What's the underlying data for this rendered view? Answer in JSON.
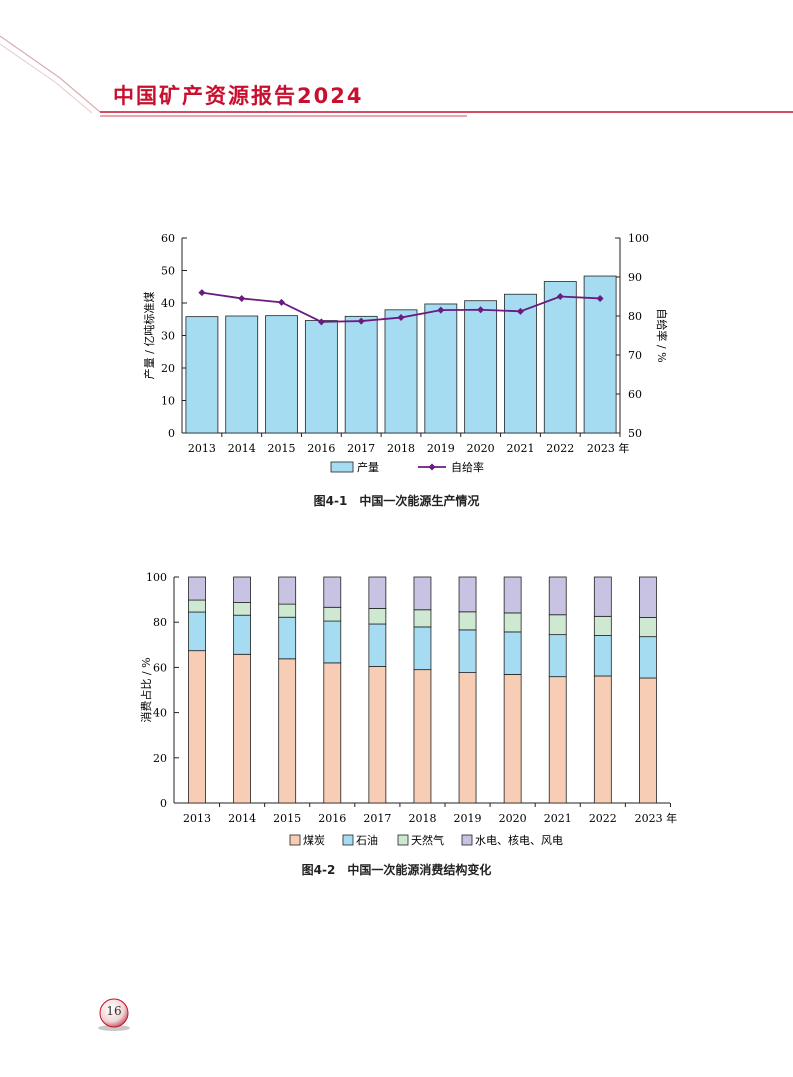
{
  "header": {
    "title": "中国矿产资源报告2024"
  },
  "page_number": "16",
  "colors": {
    "accent": "#c8102e",
    "bar_fill": "#a6dcf2",
    "line": "#6a1b7f",
    "coal": "#f8cdb5",
    "oil": "#a6dcf2",
    "gas": "#cfe8d2",
    "renewable": "#c9c3e3"
  },
  "chart_data": [
    {
      "type": "bar+line",
      "caption": "图4-1　中国一次能源生产情况",
      "categories": [
        "2013",
        "2014",
        "2015",
        "2016",
        "2017",
        "2018",
        "2019",
        "2020",
        "2021",
        "2022",
        "2023"
      ],
      "x_unit": "年",
      "ylabel_left": "产量 / 亿吨标准煤",
      "ylabel_right": "自给率 / %",
      "ylim_left": [
        0,
        60
      ],
      "ylim_right": [
        50,
        100
      ],
      "yticks_left": [
        "0",
        "10",
        "20",
        "30",
        "40",
        "50",
        "60"
      ],
      "yticks_right": [
        "50",
        "60",
        "70",
        "80",
        "90",
        "100"
      ],
      "series": [
        {
          "name": "产量",
          "kind": "bar",
          "axis": "left",
          "values": [
            35.8,
            36.0,
            36.1,
            34.6,
            35.9,
            37.9,
            39.7,
            40.7,
            42.7,
            46.6,
            48.3
          ]
        },
        {
          "name": "自给率",
          "kind": "line",
          "axis": "right",
          "values": [
            86.0,
            84.5,
            83.5,
            78.5,
            78.7,
            79.6,
            81.5,
            81.6,
            81.2,
            85.0,
            84.5
          ]
        }
      ],
      "legend_position": "bottom"
    },
    {
      "type": "stacked-bar",
      "caption": "图4-2　中国一次能源消费结构变化",
      "categories": [
        "2013",
        "2014",
        "2015",
        "2016",
        "2017",
        "2018",
        "2019",
        "2020",
        "2021",
        "2022",
        "2023"
      ],
      "x_unit": "年",
      "ylabel": "消费占比 / %",
      "ylim": [
        0,
        100
      ],
      "yticks": [
        "0",
        "20",
        "40",
        "60",
        "80",
        "100"
      ],
      "series": [
        {
          "name": "煤炭",
          "values": [
            67.4,
            65.8,
            63.8,
            62.0,
            60.4,
            59.0,
            57.7,
            56.9,
            55.9,
            56.2,
            55.3
          ]
        },
        {
          "name": "石油",
          "values": [
            17.1,
            17.3,
            18.4,
            18.5,
            18.8,
            18.9,
            18.9,
            18.8,
            18.6,
            17.9,
            18.3
          ]
        },
        {
          "name": "天然气",
          "values": [
            5.3,
            5.6,
            5.8,
            6.1,
            6.9,
            7.6,
            8.0,
            8.4,
            8.8,
            8.5,
            8.5
          ]
        },
        {
          "name": "水电、核电、风电",
          "values": [
            10.2,
            11.3,
            12.0,
            13.4,
            13.9,
            14.5,
            15.4,
            15.9,
            16.7,
            17.4,
            17.9
          ]
        }
      ],
      "legend_position": "bottom"
    }
  ]
}
